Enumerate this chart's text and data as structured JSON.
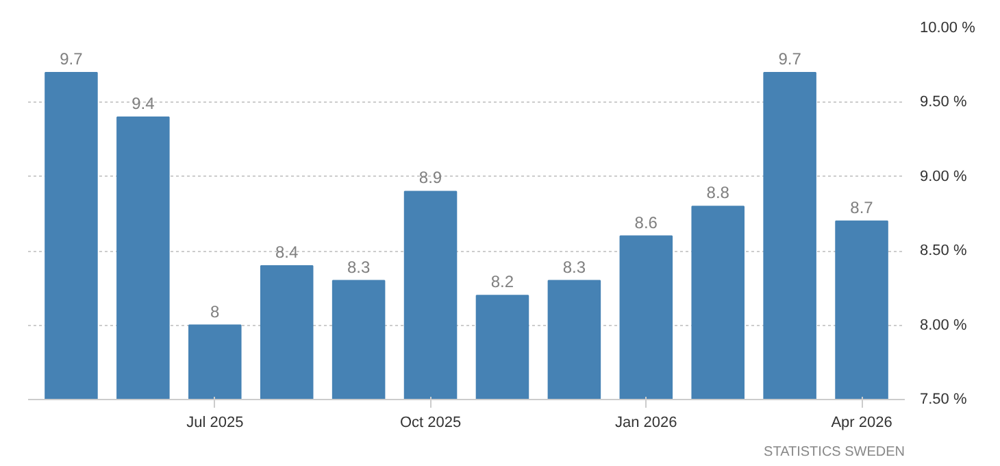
{
  "chart_data": {
    "type": "bar",
    "categories": [
      null,
      null,
      "Jul 2025",
      null,
      null,
      "Oct 2025",
      null,
      null,
      "Jan 2026",
      null,
      null,
      "Apr 2026"
    ],
    "values": [
      9.7,
      9.4,
      8,
      8.4,
      8.3,
      8.9,
      8.2,
      8.3,
      8.6,
      8.8,
      9.7,
      8.7
    ],
    "color": "#4682b4",
    "data_labels": true,
    "ylim": [
      7.5,
      10.0
    ],
    "yticks": [
      {
        "value": 7.5,
        "label": "7.50 %"
      },
      {
        "value": 8.0,
        "label": "8.00 %"
      },
      {
        "value": 8.5,
        "label": "8.50 %"
      },
      {
        "value": 9.0,
        "label": "9.00 %"
      },
      {
        "value": 9.5,
        "label": "9.50 %"
      },
      {
        "value": 10.0,
        "label": "10.00 %"
      }
    ],
    "grid": "y",
    "annotations": [
      "STATISTICS SWEDEN"
    ]
  }
}
